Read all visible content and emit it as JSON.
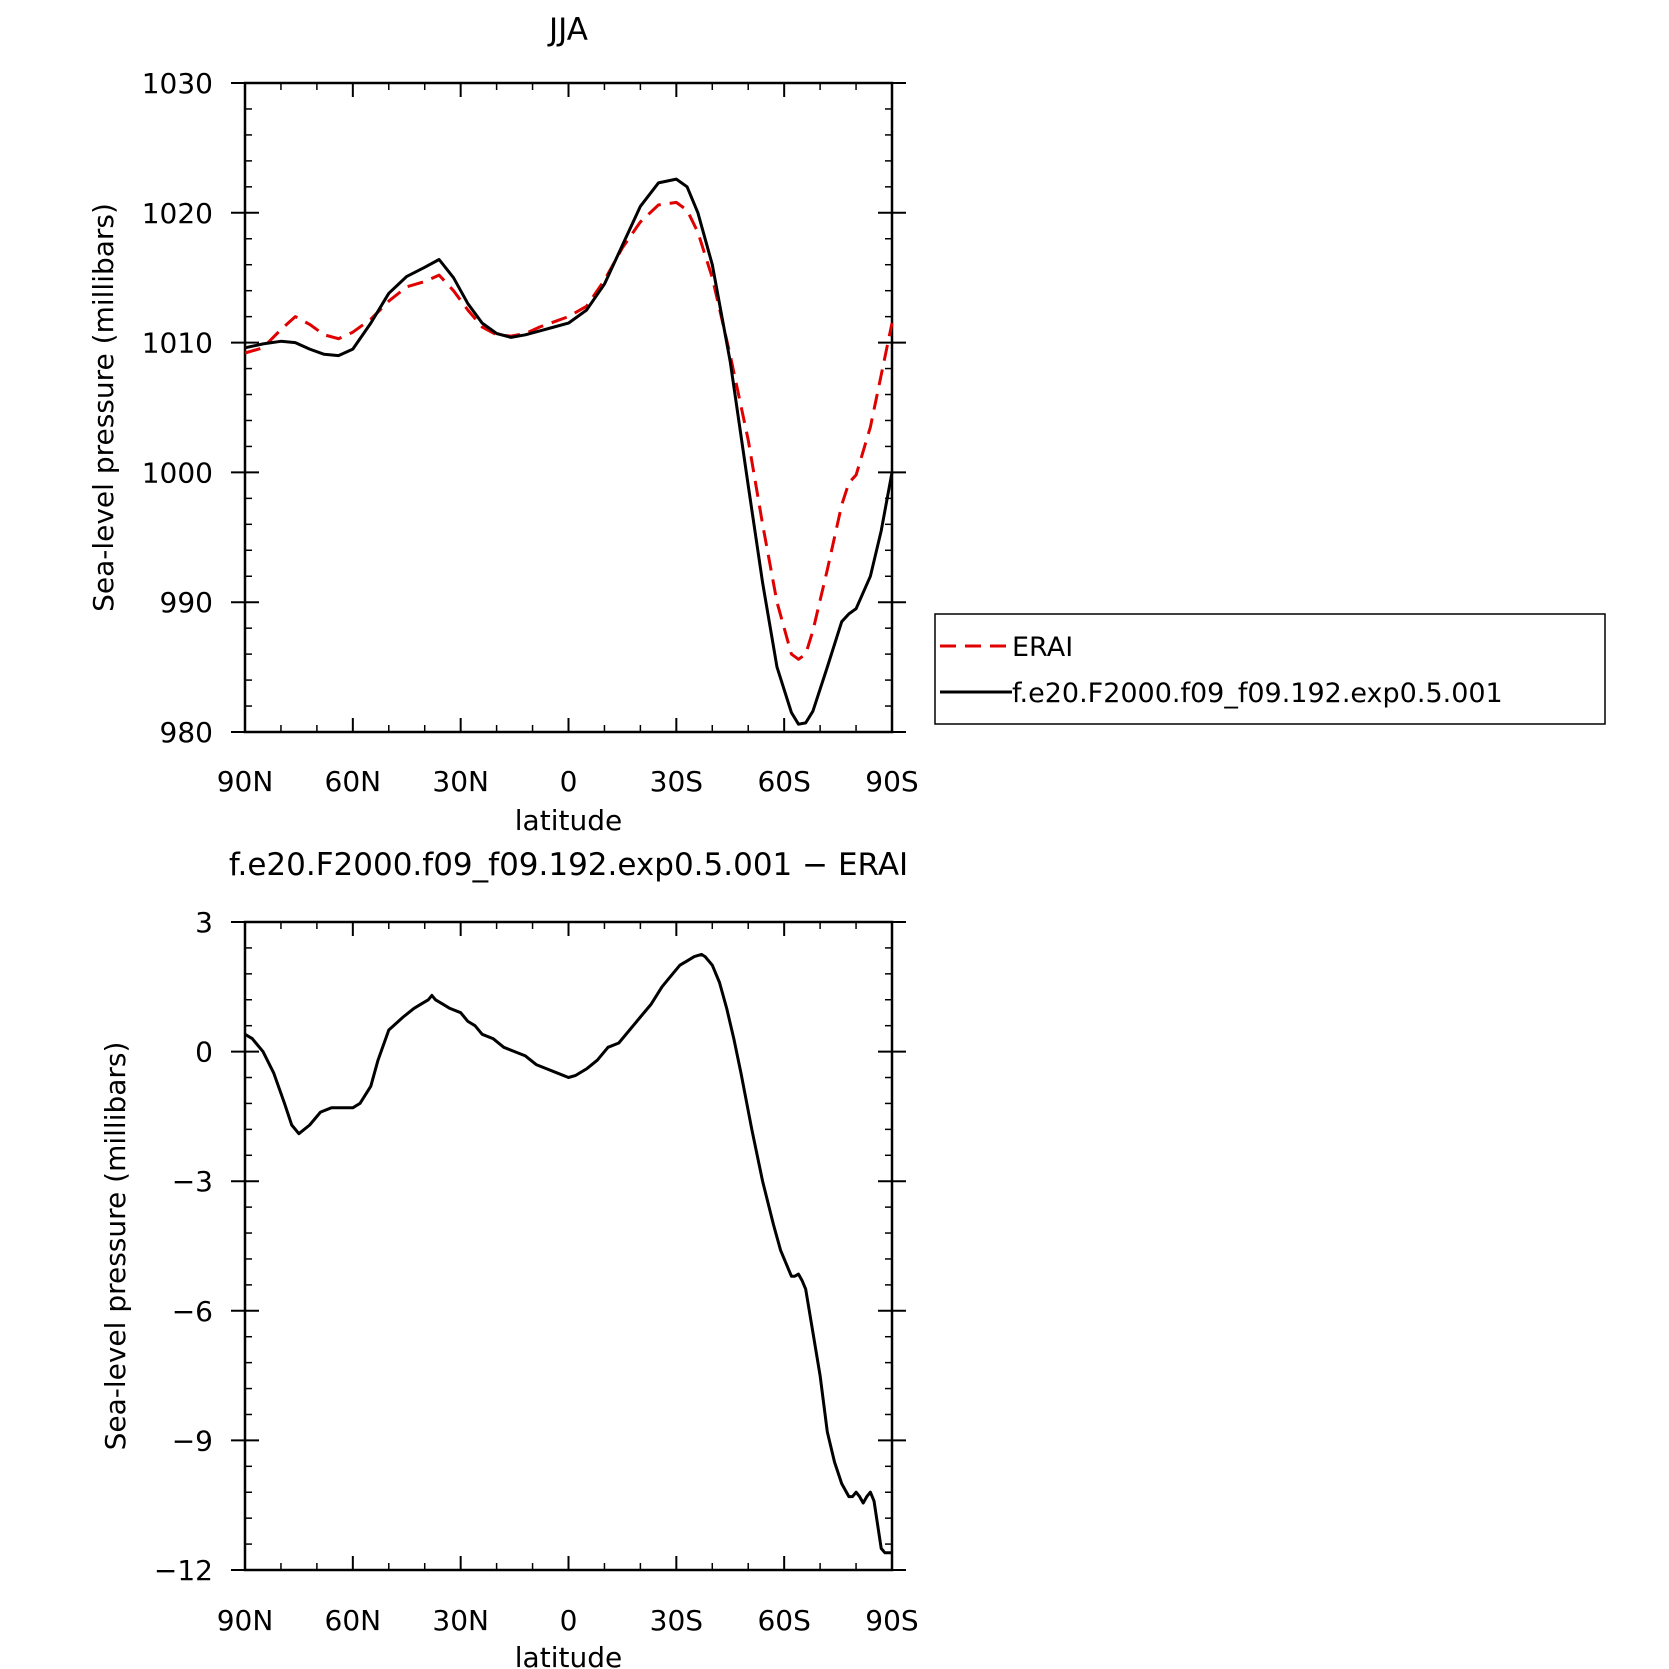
{
  "chart_data": [
    {
      "type": "line",
      "title": "JJA",
      "xlabel": "latitude",
      "ylabel": "Sea-level pressure (millibars)",
      "xlim": [
        90,
        -90
      ],
      "ylim": [
        980,
        1030
      ],
      "x_tick_values": [
        90,
        60,
        30,
        0,
        -30,
        -60,
        -90
      ],
      "x_tick_labels": [
        "90N",
        "60N",
        "30N",
        "0",
        "30S",
        "60S",
        "90S"
      ],
      "y_ticks": [
        980,
        990,
        1000,
        1010,
        1020,
        1030
      ],
      "grid": false,
      "legend_position": "right",
      "series": [
        {
          "name": "ERAI",
          "color": "#e00000",
          "style": "dashed",
          "x": [
            90,
            85,
            80,
            76,
            72,
            68,
            64,
            60,
            55,
            50,
            45,
            40,
            36,
            32,
            28,
            24,
            20,
            16,
            12,
            8,
            4,
            0,
            -5,
            -10,
            -15,
            -20,
            -25,
            -30,
            -33,
            -36,
            -40,
            -45,
            -50,
            -54,
            -58,
            -62,
            -64,
            -66,
            -68,
            -72,
            -76,
            -78,
            -80,
            -84,
            -87,
            -90
          ],
          "y": [
            1009.2,
            1009.6,
            1011.0,
            1012.0,
            1011.4,
            1010.6,
            1010.3,
            1010.8,
            1011.8,
            1013.2,
            1014.3,
            1014.7,
            1015.2,
            1014.0,
            1012.5,
            1011.2,
            1010.6,
            1010.5,
            1010.7,
            1011.2,
            1011.6,
            1012.0,
            1012.8,
            1014.8,
            1017.3,
            1019.3,
            1020.6,
            1020.8,
            1020.2,
            1018.5,
            1015.0,
            1009.0,
            1002.5,
            996.0,
            990.0,
            986.0,
            985.6,
            986.0,
            987.8,
            992.5,
            997.5,
            999.2,
            999.8,
            1003.5,
            1007.5,
            1011.5
          ]
        },
        {
          "name": "f.e20.F2000.f09_f09.192.exp0.5.001",
          "color": "#000000",
          "style": "solid",
          "x": [
            90,
            85,
            80,
            76,
            72,
            68,
            64,
            60,
            55,
            50,
            45,
            40,
            36,
            32,
            28,
            24,
            20,
            16,
            12,
            8,
            4,
            0,
            -5,
            -10,
            -15,
            -20,
            -25,
            -30,
            -33,
            -36,
            -40,
            -45,
            -50,
            -54,
            -58,
            -62,
            -64,
            -66,
            -68,
            -72,
            -76,
            -78,
            -80,
            -84,
            -87,
            -90
          ],
          "y": [
            1009.6,
            1009.9,
            1010.1,
            1010.0,
            1009.5,
            1009.1,
            1009.0,
            1009.5,
            1011.5,
            1013.8,
            1015.1,
            1015.8,
            1016.4,
            1015.0,
            1013.0,
            1011.5,
            1010.7,
            1010.4,
            1010.6,
            1010.9,
            1011.2,
            1011.5,
            1012.5,
            1014.5,
            1017.5,
            1020.5,
            1022.3,
            1022.6,
            1022.0,
            1020.0,
            1016.0,
            1008.5,
            999.0,
            991.5,
            985.0,
            981.5,
            980.6,
            980.7,
            981.6,
            985.0,
            988.5,
            989.1,
            989.5,
            992.0,
            995.5,
            1000.0
          ]
        }
      ]
    },
    {
      "type": "line",
      "title": "f.e20.F2000.f09_f09.192.exp0.5.001 − ERAI",
      "xlabel": "latitude",
      "ylabel": "Sea-level pressure (millibars)",
      "xlim": [
        90,
        -90
      ],
      "ylim": [
        -12,
        3
      ],
      "x_tick_values": [
        90,
        60,
        30,
        0,
        -30,
        -60,
        -90
      ],
      "x_tick_labels": [
        "90N",
        "60N",
        "30N",
        "0",
        "30S",
        "60S",
        "90S"
      ],
      "y_ticks": [
        -12,
        -9,
        -6,
        -3,
        0,
        3
      ],
      "y_tick_labels": [
        "−12",
        "−9",
        "−6",
        "−3",
        "0",
        "3"
      ],
      "grid": false,
      "series": [
        {
          "color": "#000000",
          "style": "solid",
          "x": [
            90,
            88,
            85,
            82,
            79,
            77,
            75,
            72,
            69,
            66,
            63,
            60,
            58,
            55,
            53,
            50,
            46,
            43,
            41,
            39,
            38,
            37,
            35,
            33,
            30,
            28,
            26,
            24,
            21,
            18,
            15,
            12,
            9,
            6,
            3,
            0,
            -2,
            -5,
            -8,
            -11,
            -14,
            -17,
            -20,
            -23,
            -26,
            -29,
            -31,
            -33,
            -35,
            -37,
            -38,
            -40,
            -42,
            -44,
            -46,
            -48,
            -51,
            -54,
            -57,
            -59,
            -61,
            -62,
            -63,
            -64,
            -65,
            -66,
            -68,
            -70,
            -72,
            -74,
            -76,
            -78,
            -79,
            -80,
            -81,
            -82,
            -83,
            -84,
            -85,
            -87,
            -88,
            -89,
            -90
          ],
          "y": [
            0.4,
            0.3,
            0.0,
            -0.5,
            -1.2,
            -1.7,
            -1.9,
            -1.7,
            -1.4,
            -1.3,
            -1.3,
            -1.3,
            -1.2,
            -0.8,
            -0.2,
            0.5,
            0.8,
            1.0,
            1.1,
            1.2,
            1.3,
            1.2,
            1.1,
            1.0,
            0.9,
            0.7,
            0.6,
            0.4,
            0.3,
            0.1,
            0.0,
            -0.1,
            -0.3,
            -0.4,
            -0.5,
            -0.6,
            -0.55,
            -0.4,
            -0.2,
            0.1,
            0.2,
            0.5,
            0.8,
            1.1,
            1.5,
            1.8,
            2.0,
            2.1,
            2.2,
            2.25,
            2.2,
            2.0,
            1.6,
            1.0,
            0.3,
            -0.5,
            -1.8,
            -3.0,
            -4.0,
            -4.6,
            -5.0,
            -5.2,
            -5.2,
            -5.15,
            -5.3,
            -5.5,
            -6.5,
            -7.5,
            -8.8,
            -9.5,
            -10.0,
            -10.3,
            -10.3,
            -10.2,
            -10.3,
            -10.45,
            -10.3,
            -10.2,
            -10.4,
            -11.5,
            -11.6,
            -11.6,
            -11.6
          ]
        }
      ]
    }
  ]
}
